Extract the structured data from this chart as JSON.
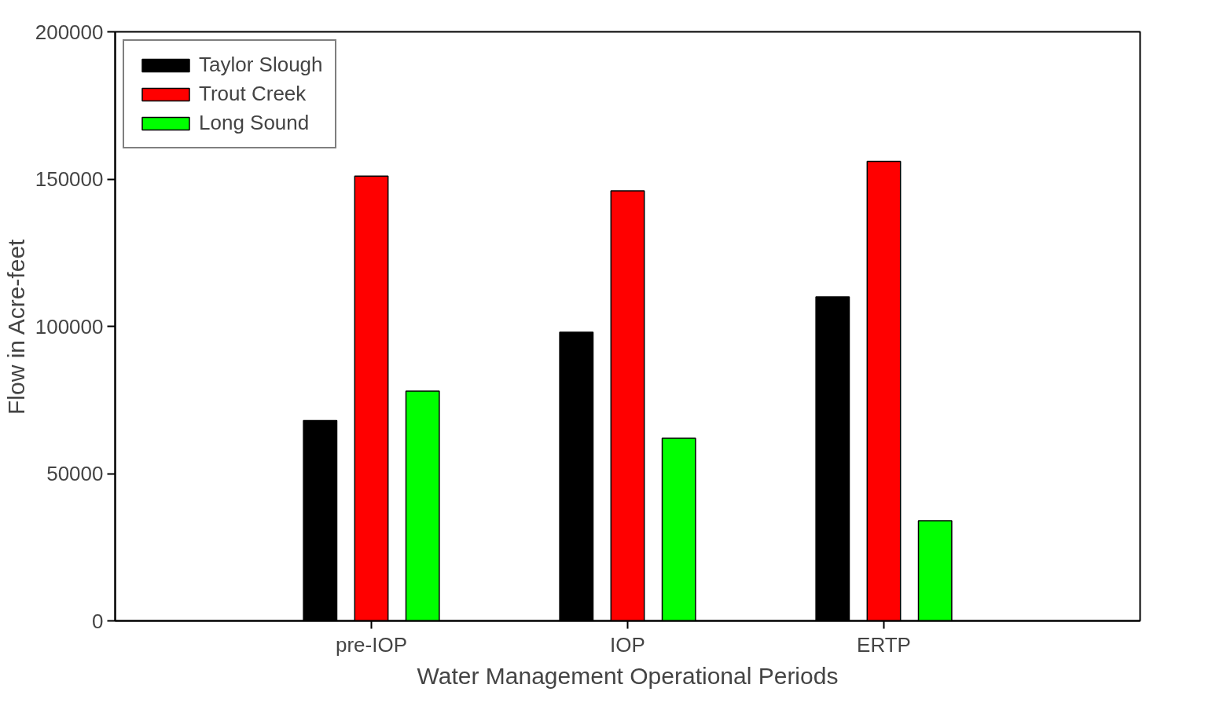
{
  "chart_data": {
    "type": "bar",
    "xlabel": "Water Management Operational Periods",
    "ylabel": "Flow in Acre-feet",
    "categories": [
      "pre-IOP",
      "IOP",
      "ERTP"
    ],
    "series": [
      {
        "name": "Taylor Slough",
        "color": "#000000",
        "values": [
          68000,
          98000,
          110000
        ]
      },
      {
        "name": "Trout Creek",
        "color": "#ff0000",
        "values": [
          151000,
          146000,
          156000
        ]
      },
      {
        "name": "Long Sound",
        "color": "#00ff00",
        "values": [
          78000,
          62000,
          34000
        ]
      }
    ],
    "ylim": [
      0,
      200000
    ],
    "yticks": [
      0,
      50000,
      100000,
      150000,
      200000
    ],
    "grid": false,
    "legend": "top left"
  }
}
